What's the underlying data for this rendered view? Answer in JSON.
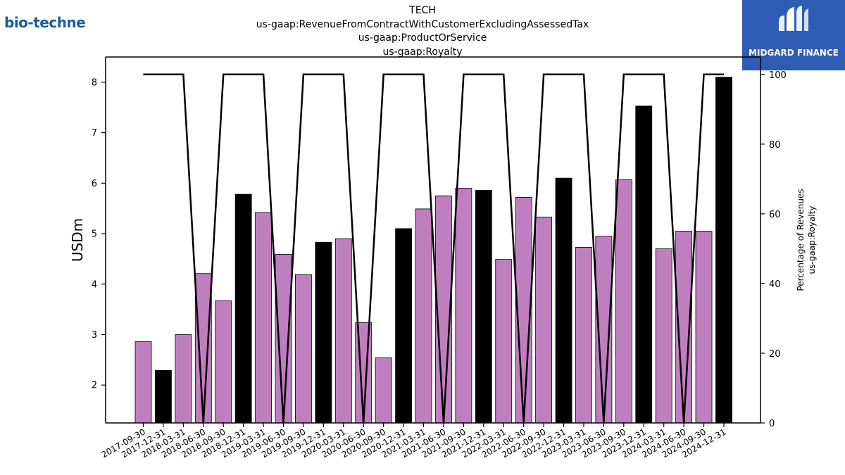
{
  "titles": {
    "line1": "TECH",
    "line2": "us-gaap:RevenueFromContractWithCustomerExcludingAssessedTax",
    "line3": "us-gaap:ProductOrService",
    "line4": "us-gaap:Royalty"
  },
  "logos": {
    "left_text": "bio-techne",
    "right_text": "MIDGARD FINANCE"
  },
  "colors": {
    "bar_purple": "#bf7fbf",
    "bar_black": "#000000",
    "line": "#000000",
    "logo_left": "#1a5c9c",
    "logo_right_bg": "#2e5cb5"
  },
  "chart_data": {
    "type": "bar",
    "categories": [
      "2017-09-30",
      "2017-12-31",
      "2018-03-31",
      "2018-06-30",
      "2018-09-30",
      "2018-12-31",
      "2019-03-31",
      "2019-06-30",
      "2019-09-30",
      "2019-12-31",
      "2020-03-31",
      "2020-06-30",
      "2020-09-30",
      "2020-12-31",
      "2021-03-31",
      "2021-06-30",
      "2021-09-30",
      "2021-12-31",
      "2022-03-31",
      "2022-06-30",
      "2022-09-30",
      "2022-12-31",
      "2023-03-31",
      "2023-06-30",
      "2023-09-30",
      "2023-12-31",
      "2024-03-31",
      "2024-06-30",
      "2024-09-30",
      "2024-12-31"
    ],
    "values": [
      2.86,
      2.29,
      3.0,
      4.21,
      3.67,
      5.78,
      5.42,
      4.59,
      4.19,
      4.83,
      4.9,
      3.24,
      2.54,
      5.1,
      5.49,
      5.75,
      5.9,
      5.86,
      4.49,
      5.72,
      5.33,
      6.1,
      4.73,
      4.95,
      6.07,
      7.53,
      4.7,
      5.05,
      5.05,
      8.1
    ],
    "bar_colors": [
      "purple",
      "black",
      "purple",
      "purple",
      "purple",
      "black",
      "purple",
      "purple",
      "purple",
      "black",
      "purple",
      "purple",
      "purple",
      "black",
      "purple",
      "purple",
      "purple",
      "black",
      "purple",
      "purple",
      "purple",
      "black",
      "purple",
      "purple",
      "purple",
      "black",
      "purple",
      "purple",
      "purple",
      "black"
    ],
    "line_values": [
      100,
      100,
      100,
      0,
      100,
      100,
      100,
      0,
      100,
      100,
      100,
      0,
      100,
      100,
      100,
      0,
      100,
      100,
      100,
      0,
      100,
      100,
      100,
      0,
      100,
      100,
      100,
      0,
      100,
      100
    ],
    "ylabel": "USDm",
    "y2label_line1": "Percentage of Revenues",
    "y2label_line2": "us-gaap:Royalty",
    "ylim": [
      1.25,
      8.5
    ],
    "y2lim": [
      0,
      105
    ],
    "yticks": [
      "2",
      "3",
      "4",
      "5",
      "6",
      "7",
      "8"
    ],
    "y2ticks": [
      "0",
      "20",
      "40",
      "60",
      "80",
      "100"
    ],
    "grid": false
  }
}
